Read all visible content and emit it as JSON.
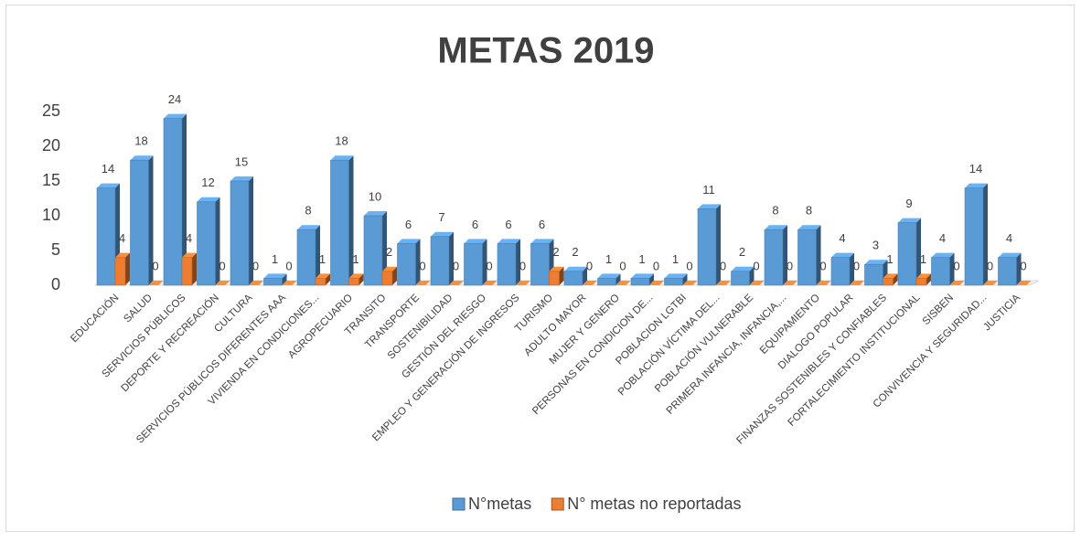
{
  "chart_data": {
    "type": "bar3d",
    "title": "METAS 2019",
    "categories": [
      "EDUCACIÓN",
      "SALUD",
      "SERVICIOS PÚBLICOS",
      "DEPORTE Y RECREACIÓN",
      "CULTURA",
      "SERVICIOS PÚBLICOS DIFERENTES AAA",
      "VIVIENDA EN CONDICIONES...",
      "AGROPECUARIO",
      "TRANSITO",
      "TRANSPORTE",
      "SOSTENIBILIDAD",
      "GESTIÓN DEL RIESGO",
      "EMPLEO Y GENERACIÓN DE INGRESOS",
      "TURISMO",
      "ADULTO MAYOR",
      "MUJER Y GENERO",
      "PERSONAS EN CONDICION DE...",
      "POBLACION LGTBI",
      "POBLACIÓN VÍCTIMA DEL...",
      "POBLACIÓN VULNERABLE",
      "PRIMERA INFANCIA, INFANCIA,...",
      "EQUIPAMIENTO",
      "DIALOGO POPULAR",
      "FINANZAS SOSTENIBLES Y CONFIABLES",
      "FORTALECIMIENTO INSTITUCIONAL",
      "SISBEN",
      "CONVIVENCIA Y SEGURIDAD...",
      "JUSTICIA"
    ],
    "series": [
      {
        "name": "N°metas",
        "color": "#5b9bd5",
        "values": [
          14,
          18,
          24,
          12,
          15,
          1,
          8,
          18,
          10,
          6,
          7,
          6,
          6,
          6,
          2,
          1,
          1,
          1,
          11,
          2,
          8,
          8,
          4,
          3,
          9,
          4,
          14,
          4
        ]
      },
      {
        "name": "N° metas no reportadas",
        "color": "#ed7d31",
        "values": [
          4,
          0,
          4,
          0,
          0,
          0,
          1,
          1,
          2,
          0,
          0,
          0,
          0,
          2,
          0,
          0,
          0,
          0,
          0,
          0,
          0,
          0,
          0,
          1,
          1,
          0,
          0,
          0
        ]
      }
    ],
    "ylim": [
      0,
      25
    ],
    "yticks": [
      0,
      5,
      10,
      15,
      20,
      25
    ],
    "grid": false,
    "legend": "bottom"
  }
}
